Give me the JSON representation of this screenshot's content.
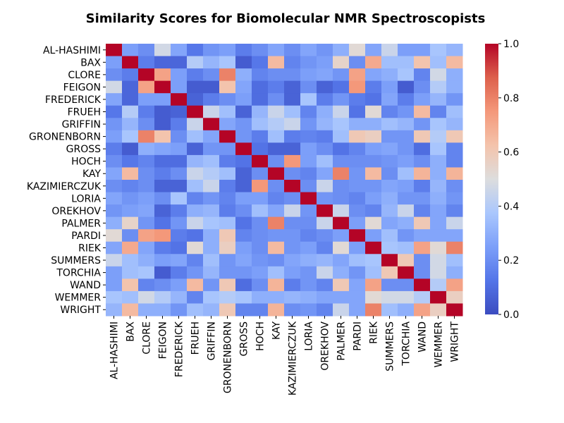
{
  "chart_data": {
    "type": "heatmap",
    "title": "Similarity Scores for Biomolecular NMR Spectroscopists",
    "xlabel": "",
    "ylabel": "",
    "labels": [
      "AL-HASHIMI",
      "BAX",
      "CLORE",
      "FEIGON",
      "FREDERICK",
      "FRUEH",
      "GRIFFIN",
      "GRONENBORN",
      "GROSS",
      "HOCH",
      "KAY",
      "KAZIMIERCZUK",
      "LORIA",
      "OREKHOV",
      "PALMER",
      "PARDI",
      "RIEK",
      "SUMMERS",
      "TORCHIA",
      "WAND",
      "WEMMER",
      "WRIGHT"
    ],
    "values": [
      [
        1.0,
        0.25,
        0.2,
        0.47,
        0.27,
        0.13,
        0.22,
        0.25,
        0.15,
        0.2,
        0.27,
        0.2,
        0.27,
        0.22,
        0.3,
        0.52,
        0.27,
        0.45,
        0.25,
        0.25,
        0.37,
        0.32
      ],
      [
        0.25,
        1.0,
        0.15,
        0.08,
        0.08,
        0.4,
        0.32,
        0.37,
        0.05,
        0.13,
        0.65,
        0.17,
        0.22,
        0.25,
        0.55,
        0.2,
        0.7,
        0.35,
        0.35,
        0.62,
        0.35,
        0.65
      ],
      [
        0.2,
        0.15,
        1.0,
        0.72,
        0.25,
        0.15,
        0.2,
        0.8,
        0.3,
        0.17,
        0.2,
        0.2,
        0.25,
        0.27,
        0.22,
        0.72,
        0.27,
        0.3,
        0.37,
        0.17,
        0.47,
        0.3
      ],
      [
        0.47,
        0.08,
        0.72,
        1.0,
        0.25,
        0.05,
        0.05,
        0.62,
        0.27,
        0.1,
        0.15,
        0.07,
        0.2,
        0.07,
        0.12,
        0.75,
        0.15,
        0.25,
        0.05,
        0.2,
        0.4,
        0.3
      ],
      [
        0.27,
        0.08,
        0.25,
        0.25,
        1.0,
        0.07,
        0.15,
        0.2,
        0.25,
        0.1,
        0.2,
        0.07,
        0.37,
        0.15,
        0.22,
        0.15,
        0.12,
        0.27,
        0.15,
        0.25,
        0.32,
        0.22
      ],
      [
        0.13,
        0.4,
        0.15,
        0.05,
        0.07,
        1.0,
        0.45,
        0.35,
        0.07,
        0.32,
        0.45,
        0.35,
        0.17,
        0.3,
        0.45,
        0.12,
        0.52,
        0.17,
        0.22,
        0.65,
        0.17,
        0.35
      ],
      [
        0.22,
        0.32,
        0.2,
        0.05,
        0.15,
        0.45,
        1.0,
        0.27,
        0.22,
        0.35,
        0.4,
        0.45,
        0.22,
        0.32,
        0.37,
        0.3,
        0.3,
        0.35,
        0.32,
        0.22,
        0.37,
        0.32
      ],
      [
        0.25,
        0.37,
        0.8,
        0.62,
        0.2,
        0.35,
        0.27,
        1.0,
        0.22,
        0.15,
        0.35,
        0.15,
        0.17,
        0.15,
        0.35,
        0.6,
        0.57,
        0.22,
        0.22,
        0.6,
        0.4,
        0.6
      ],
      [
        0.15,
        0.05,
        0.3,
        0.27,
        0.25,
        0.07,
        0.22,
        0.22,
        1.0,
        0.12,
        0.07,
        0.07,
        0.25,
        0.2,
        0.12,
        0.17,
        0.25,
        0.27,
        0.22,
        0.1,
        0.37,
        0.17
      ],
      [
        0.2,
        0.13,
        0.17,
        0.1,
        0.1,
        0.32,
        0.35,
        0.15,
        0.12,
        1.0,
        0.2,
        0.75,
        0.25,
        0.35,
        0.2,
        0.2,
        0.2,
        0.22,
        0.25,
        0.2,
        0.3,
        0.17
      ],
      [
        0.27,
        0.65,
        0.2,
        0.15,
        0.2,
        0.45,
        0.4,
        0.35,
        0.07,
        0.2,
        1.0,
        0.2,
        0.17,
        0.27,
        0.8,
        0.22,
        0.65,
        0.2,
        0.35,
        0.67,
        0.3,
        0.67
      ],
      [
        0.2,
        0.17,
        0.2,
        0.07,
        0.07,
        0.35,
        0.45,
        0.15,
        0.07,
        0.75,
        0.2,
        1.0,
        0.2,
        0.45,
        0.2,
        0.22,
        0.22,
        0.27,
        0.25,
        0.15,
        0.32,
        0.2
      ],
      [
        0.27,
        0.22,
        0.25,
        0.2,
        0.37,
        0.17,
        0.22,
        0.17,
        0.25,
        0.25,
        0.17,
        0.2,
        1.0,
        0.22,
        0.2,
        0.17,
        0.25,
        0.3,
        0.22,
        0.22,
        0.3,
        0.22
      ],
      [
        0.22,
        0.25,
        0.27,
        0.07,
        0.15,
        0.3,
        0.32,
        0.15,
        0.2,
        0.35,
        0.27,
        0.45,
        0.22,
        1.0,
        0.45,
        0.2,
        0.17,
        0.32,
        0.45,
        0.17,
        0.27,
        0.17
      ],
      [
        0.3,
        0.55,
        0.22,
        0.12,
        0.22,
        0.45,
        0.37,
        0.35,
        0.12,
        0.2,
        0.8,
        0.2,
        0.2,
        0.45,
        1.0,
        0.25,
        0.52,
        0.27,
        0.3,
        0.6,
        0.27,
        0.45
      ],
      [
        0.52,
        0.2,
        0.72,
        0.75,
        0.15,
        0.12,
        0.3,
        0.6,
        0.17,
        0.2,
        0.22,
        0.22,
        0.17,
        0.2,
        0.25,
        1.0,
        0.25,
        0.35,
        0.22,
        0.27,
        0.27,
        0.27
      ],
      [
        0.27,
        0.7,
        0.27,
        0.15,
        0.12,
        0.52,
        0.3,
        0.57,
        0.25,
        0.2,
        0.65,
        0.22,
        0.25,
        0.17,
        0.52,
        0.25,
        1.0,
        0.37,
        0.35,
        0.72,
        0.52,
        0.8
      ],
      [
        0.45,
        0.35,
        0.3,
        0.25,
        0.27,
        0.17,
        0.35,
        0.22,
        0.27,
        0.22,
        0.2,
        0.27,
        0.3,
        0.32,
        0.27,
        0.35,
        0.37,
        1.0,
        0.6,
        0.2,
        0.47,
        0.35
      ],
      [
        0.25,
        0.35,
        0.37,
        0.05,
        0.15,
        0.22,
        0.32,
        0.22,
        0.22,
        0.25,
        0.35,
        0.25,
        0.22,
        0.45,
        0.3,
        0.22,
        0.35,
        0.6,
        1.0,
        0.2,
        0.47,
        0.3
      ],
      [
        0.25,
        0.62,
        0.17,
        0.2,
        0.25,
        0.65,
        0.22,
        0.6,
        0.1,
        0.2,
        0.67,
        0.15,
        0.22,
        0.17,
        0.6,
        0.27,
        0.72,
        0.2,
        0.2,
        1.0,
        0.4,
        0.72
      ],
      [
        0.37,
        0.35,
        0.47,
        0.4,
        0.32,
        0.17,
        0.37,
        0.4,
        0.37,
        0.3,
        0.3,
        0.32,
        0.3,
        0.27,
        0.27,
        0.27,
        0.52,
        0.47,
        0.47,
        0.4,
        1.0,
        0.57
      ],
      [
        0.32,
        0.65,
        0.3,
        0.3,
        0.22,
        0.35,
        0.32,
        0.6,
        0.17,
        0.17,
        0.67,
        0.2,
        0.22,
        0.17,
        0.45,
        0.27,
        0.8,
        0.35,
        0.3,
        0.72,
        0.57,
        1.0
      ]
    ],
    "vmin": 0.0,
    "vmax": 1.0,
    "colormap": "coolwarm",
    "colorbar_ticks": [
      "0.0",
      "0.2",
      "0.4",
      "0.6",
      "0.8",
      "1.0"
    ],
    "colors": {
      "low": "#3b4cc0",
      "mid": "#dddddd",
      "high": "#b40426"
    }
  }
}
